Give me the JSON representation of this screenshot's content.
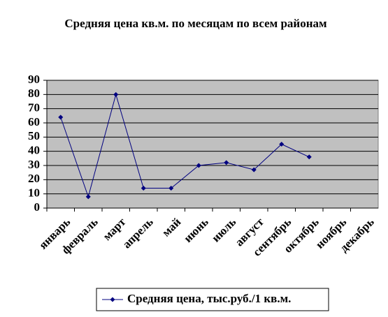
{
  "chart_data": {
    "type": "line",
    "title": "Средняя цена кв.м. по месяцам по всем районам",
    "categories": [
      "январь",
      "февраль",
      "март",
      "апрель",
      "май",
      "июнь",
      "июль",
      "август",
      "сентябрь",
      "октябрь",
      "ноябрь",
      "декабрь"
    ],
    "series": [
      {
        "name": "Средняя цена, тыс.руб./1 кв.м.",
        "color": "#000080",
        "values": [
          64,
          8,
          80,
          14,
          14,
          30,
          32,
          27,
          45,
          36,
          null,
          null
        ]
      }
    ],
    "ylim": [
      0,
      90
    ],
    "yticks": [
      0,
      10,
      20,
      30,
      40,
      50,
      60,
      70,
      80,
      90
    ],
    "grid": true,
    "plot_background": "#c0c0c0",
    "legend": "bottom"
  }
}
